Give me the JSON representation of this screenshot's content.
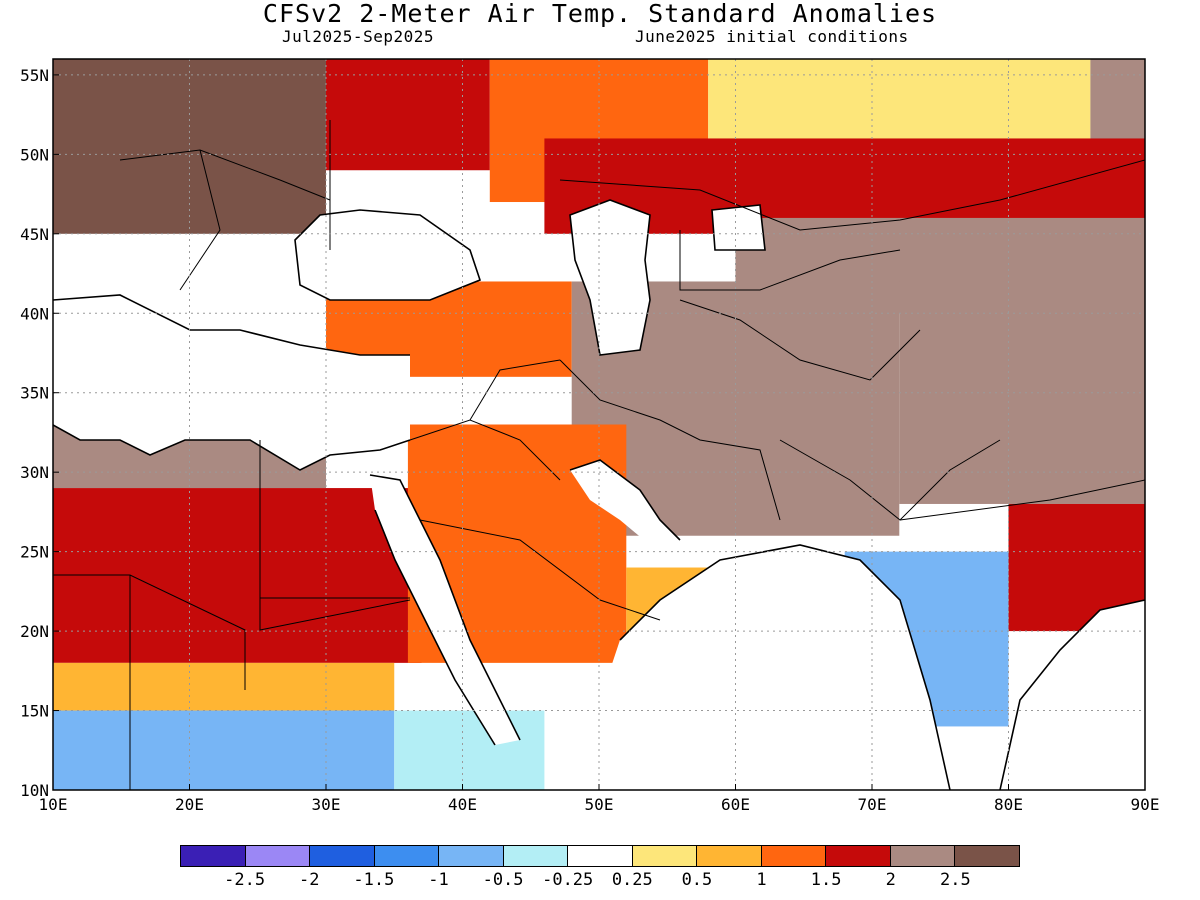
{
  "header": {
    "title": "CFSv2 2-Meter Air Temp. Standard Anomalies",
    "period": "Jul2025-Sep2025",
    "init": "June2025 initial conditions"
  },
  "chart_data": {
    "type": "heatmap",
    "title": "CFSv2 2-Meter Air Temp. Standard Anomalies",
    "lon_range": [
      10,
      90
    ],
    "lat_range": [
      10,
      56
    ],
    "x_ticks": [
      "10E",
      "20E",
      "30E",
      "40E",
      "50E",
      "60E",
      "70E",
      "80E",
      "90E"
    ],
    "x_tick_values": [
      10,
      20,
      30,
      40,
      50,
      60,
      70,
      80,
      90
    ],
    "y_ticks": [
      "10N",
      "15N",
      "20N",
      "25N",
      "30N",
      "35N",
      "40N",
      "45N",
      "50N",
      "55N"
    ],
    "y_tick_values": [
      10,
      15,
      20,
      25,
      30,
      35,
      40,
      45,
      50,
      55
    ],
    "grid": true,
    "colorbar": {
      "colors": [
        "#3a1fb5",
        "#9b87f5",
        "#1f5fe0",
        "#3d8ef0",
        "#77b5f5",
        "#b3eef5",
        "#ffffff",
        "#fde67a",
        "#ffb533",
        "#ff6610",
        "#c50a0a",
        "#aa8a82",
        "#7a5348"
      ],
      "labels": [
        "-2.5",
        "-2",
        "-1.5",
        "-1",
        "-0.5",
        "-0.25",
        "0.25",
        "0.5",
        "1",
        "1.5",
        "2",
        "2.5"
      ]
    },
    "regions": [
      {
        "lon": [
          10,
          30
        ],
        "lat": [
          45,
          56
        ],
        "value": 2.7
      },
      {
        "lon": [
          30,
          42
        ],
        "lat": [
          49,
          56
        ],
        "value": 1.9
      },
      {
        "lon": [
          42,
          58
        ],
        "lat": [
          47,
          56
        ],
        "value": 1.3
      },
      {
        "lon": [
          58,
          86
        ],
        "lat": [
          50,
          56
        ],
        "value": 0.4
      },
      {
        "lon": [
          86,
          90
        ],
        "lat": [
          49,
          56
        ],
        "value": 2.1
      },
      {
        "lon": [
          46,
          90
        ],
        "lat": [
          45,
          51
        ],
        "value": 1.9
      },
      {
        "lon": [
          60,
          90
        ],
        "lat": [
          40,
          46
        ],
        "value": 2.3
      },
      {
        "lon": [
          30,
          48
        ],
        "lat": [
          36,
          42
        ],
        "value": 1.3
      },
      {
        "lon": [
          48,
          72
        ],
        "lat": [
          26,
          42
        ],
        "value": 2.1
      },
      {
        "lon": [
          72,
          90
        ],
        "lat": [
          28,
          42
        ],
        "value": 2.4
      },
      {
        "lon": [
          10,
          30
        ],
        "lat": [
          29,
          33
        ],
        "value": 2.4
      },
      {
        "lon": [
          10,
          37
        ],
        "lat": [
          18,
          29
        ],
        "value": 1.9
      },
      {
        "lon": [
          36,
          52
        ],
        "lat": [
          18,
          33
        ],
        "value": 1.2
      },
      {
        "lon": [
          52,
          58
        ],
        "lat": [
          18,
          24
        ],
        "value": 0.5
      },
      {
        "lon": [
          10,
          35
        ],
        "lat": [
          15,
          18
        ],
        "value": 0.9
      },
      {
        "lon": [
          10,
          35
        ],
        "lat": [
          10,
          15
        ],
        "value": -0.8
      },
      {
        "lon": [
          35,
          46
        ],
        "lat": [
          10,
          15
        ],
        "value": -0.3
      },
      {
        "lon": [
          68,
          80
        ],
        "lat": [
          14,
          25
        ],
        "value": -0.8
      },
      {
        "lon": [
          80,
          90
        ],
        "lat": [
          20,
          28
        ],
        "value": 1.6
      }
    ]
  }
}
